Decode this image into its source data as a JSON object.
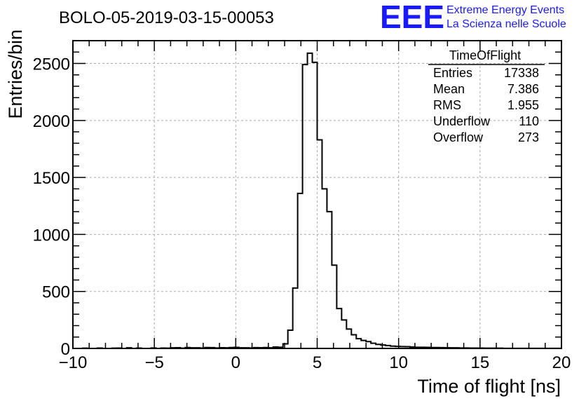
{
  "chart_data": {
    "type": "bar",
    "title": "BOLO-05-2019-03-15-00053",
    "xlabel": "Time of flight [ns]",
    "ylabel": "Entries/bin",
    "xlim": [
      -10,
      20
    ],
    "ylim": [
      0,
      2700
    ],
    "grid": true,
    "x_ticks": [
      -10,
      -5,
      0,
      5,
      10,
      15,
      20
    ],
    "y_ticks": [
      0,
      500,
      1000,
      1500,
      2000,
      2500
    ],
    "bin_width": 0.3,
    "bin_start": -10,
    "values": [
      0,
      0,
      2,
      0,
      0,
      3,
      0,
      0,
      2,
      3,
      0,
      5,
      0,
      3,
      0,
      0,
      4,
      0,
      3,
      2,
      5,
      6,
      2,
      8,
      5,
      5,
      3,
      8,
      7,
      4,
      6,
      5,
      8,
      9,
      5,
      5,
      4,
      7,
      6,
      8,
      5,
      12,
      10,
      40,
      160,
      530,
      1360,
      2490,
      2590,
      2510,
      1830,
      1400,
      1200,
      730,
      350,
      250,
      170,
      120,
      85,
      70,
      60,
      45,
      35,
      30,
      25,
      20,
      18,
      16,
      15,
      12,
      10,
      10,
      9,
      8,
      8,
      7,
      6,
      5,
      5,
      4,
      4,
      3,
      3,
      3,
      2,
      2,
      2,
      2,
      1,
      1,
      1,
      1,
      1,
      1,
      1,
      1,
      1,
      1,
      1,
      1
    ],
    "stats_box": {
      "name": "TimeOfFlight",
      "rows": [
        {
          "label": "Entries",
          "value": "17338"
        },
        {
          "label": "Mean",
          "value": "7.386"
        },
        {
          "label": "RMS",
          "value": "1.955"
        },
        {
          "label": "Underflow",
          "value": "110"
        },
        {
          "label": "Overflow",
          "value": "273"
        }
      ]
    }
  },
  "logo": {
    "mark": "EEE",
    "line1": "Extreme Energy Events",
    "line2": "La Scienza nelle Scuole"
  },
  "colors": {
    "histogram": "#000000",
    "grid": "#aaaaaa",
    "logo": "#1a1aff"
  }
}
